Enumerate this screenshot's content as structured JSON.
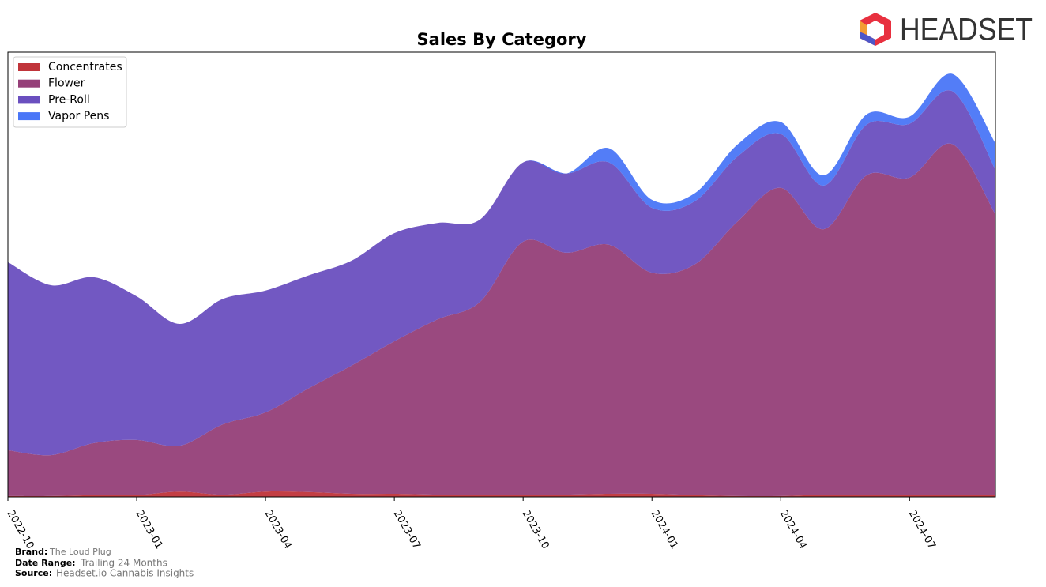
{
  "chart_data": {
    "type": "stacked-area",
    "title": "Sales By Category",
    "x": [
      "2022-10",
      "2022-11",
      "2022-12",
      "2023-01",
      "2023-02",
      "2023-03",
      "2023-04",
      "2023-05",
      "2023-06",
      "2023-07",
      "2023-08",
      "2023-09",
      "2023-10",
      "2023-11",
      "2023-12",
      "2024-01",
      "2024-02",
      "2024-03",
      "2024-04",
      "2024-05",
      "2024-06",
      "2024-07",
      "2024-08",
      "2024-09"
    ],
    "xticks": [
      "2022-10",
      "2023-01",
      "2023-04",
      "2023-07",
      "2023-10",
      "2024-01",
      "2024-04",
      "2024-07"
    ],
    "ylim": [
      0,
      100
    ],
    "legend": "upper-left",
    "series": [
      {
        "name": "Concentrates",
        "color": "#c0343a",
        "values": [
          0.2,
          0.2,
          0.4,
          0.4,
          1.2,
          0.5,
          1.2,
          1.1,
          0.7,
          0.7,
          0.5,
          0.4,
          0.4,
          0.5,
          0.7,
          0.7,
          0.4,
          0.2,
          0.2,
          0.5,
          0.5,
          0.4,
          0.4,
          0.4
        ]
      },
      {
        "name": "Flower",
        "color": "#953f78",
        "values": [
          10.3,
          9.2,
          11.7,
          12.4,
          10.3,
          15.8,
          17.8,
          23.3,
          28.8,
          34.3,
          39.4,
          43.5,
          57.0,
          54.4,
          56.0,
          49.7,
          51.9,
          61.8,
          69.3,
          59.7,
          71.8,
          71.4,
          78.9,
          63.1
        ]
      },
      {
        "name": "Pre-Roll",
        "color": "#6a4fbf",
        "values": [
          42.3,
          38.2,
          37.3,
          32.3,
          27.4,
          28.2,
          27.4,
          25.4,
          23.6,
          24.3,
          21.7,
          18.5,
          17.8,
          17.8,
          18.5,
          14.6,
          14.2,
          14.6,
          12.1,
          9.8,
          11.4,
          12.1,
          11.9,
          10.1
        ]
      },
      {
        "name": "Vapor Pens",
        "color": "#4a76f7",
        "values": [
          0,
          0,
          0,
          0,
          0,
          0,
          0,
          0,
          0,
          0,
          0,
          0,
          0,
          0,
          3.2,
          1.8,
          1.8,
          2.7,
          2.7,
          2.3,
          2.3,
          1.6,
          3.9,
          5.9
        ]
      }
    ]
  },
  "footer": {
    "brand_label": "Brand:",
    "brand": "The Loud Plug",
    "range_label": "Date Range:",
    "range": "Trailing 24 Months",
    "source_label": "Source:",
    "source": "Headset.io Cannabis Insights"
  },
  "logo": "HEADSET"
}
